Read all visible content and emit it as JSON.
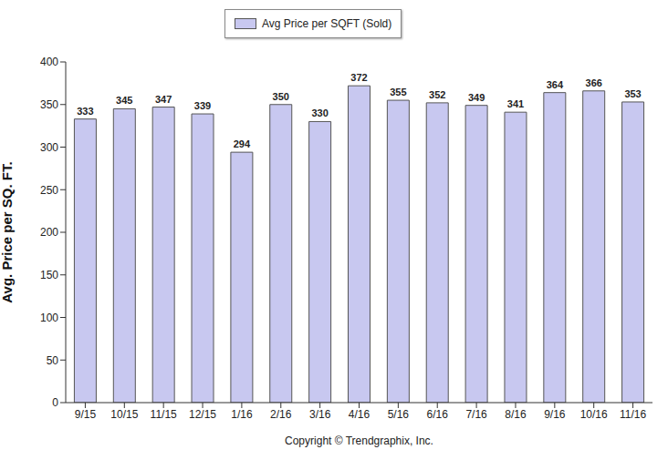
{
  "chart_data": {
    "type": "bar",
    "categories": [
      "9/15",
      "10/15",
      "11/15",
      "12/15",
      "1/16",
      "2/16",
      "3/16",
      "4/16",
      "5/16",
      "6/16",
      "7/16",
      "8/16",
      "9/16",
      "10/16",
      "11/16"
    ],
    "series": [
      {
        "name": "Avg Price per SQFT (Sold)",
        "color": "#c8c8f0",
        "values": [
          333,
          345,
          347,
          339,
          294,
          350,
          330,
          372,
          355,
          352,
          349,
          341,
          364,
          366,
          353
        ]
      }
    ],
    "ylabel": "Avg. Price per SQ. FT.",
    "xlabel": "Copyright © Trendgraphix, Inc.",
    "ylim": [
      0,
      400
    ],
    "yticks": [
      0,
      50,
      100,
      150,
      200,
      250,
      300,
      350,
      400
    ],
    "grid": false,
    "data_labels": true,
    "legend": "top"
  }
}
